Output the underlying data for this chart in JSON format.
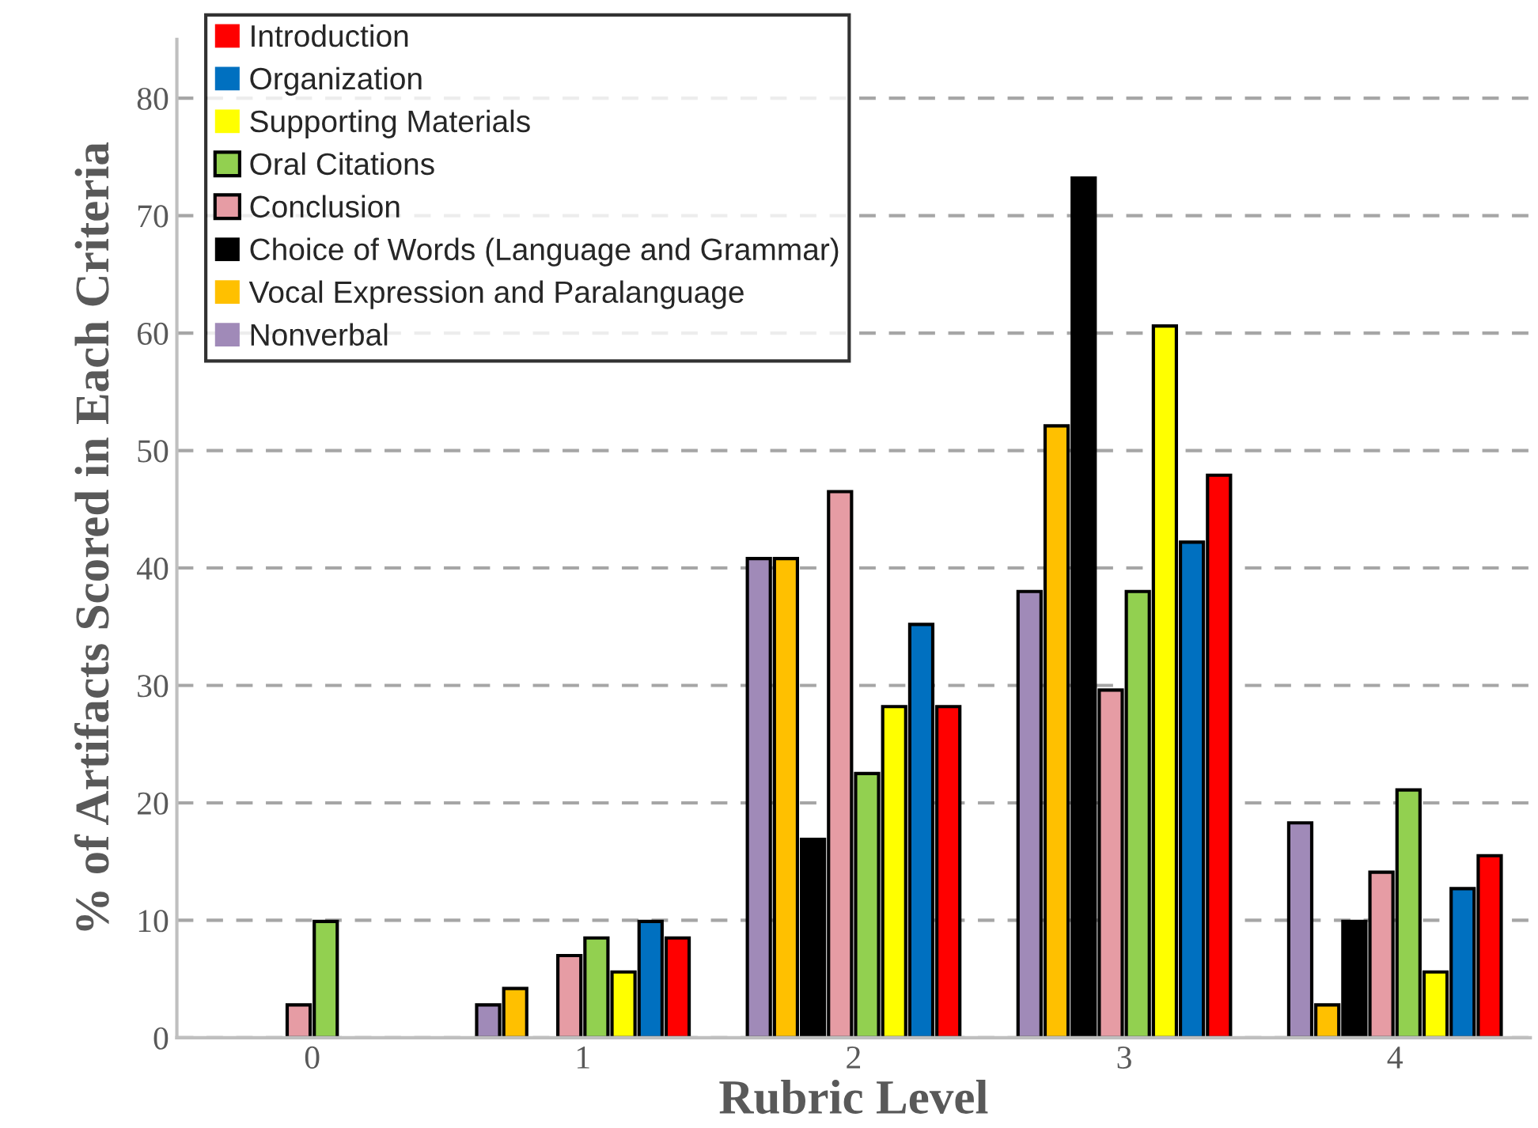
{
  "chart_data": {
    "type": "bar",
    "xlabel": "Rubric Level",
    "ylabel": "% of Artifacts Scored in Each Criteria",
    "categories": [
      "0",
      "1",
      "2",
      "3",
      "4"
    ],
    "series": [
      {
        "name": "Nonverbal",
        "color": "#a08ab8",
        "values": [
          0,
          2.8,
          40.8,
          38.0,
          18.3
        ]
      },
      {
        "name": "Vocal Expression and Paralanguage",
        "color": "#ffc000",
        "values": [
          0,
          4.2,
          40.8,
          52.1,
          2.8
        ]
      },
      {
        "name": "Choice of Words (Language and Grammar)",
        "color": "#000000",
        "values": [
          0,
          0,
          16.9,
          73.2,
          9.9
        ]
      },
      {
        "name": "Conclusion",
        "color": "#e69ca4",
        "values": [
          2.8,
          7.0,
          46.5,
          29.6,
          14.1
        ]
      },
      {
        "name": "Oral Citations",
        "color": "#92d050",
        "values": [
          9.9,
          8.5,
          22.5,
          38.0,
          21.1
        ]
      },
      {
        "name": "Supporting Materials",
        "color": "#ffff00",
        "values": [
          0,
          5.6,
          28.2,
          60.6,
          5.6
        ]
      },
      {
        "name": "Organization",
        "color": "#0070c0",
        "values": [
          0,
          9.9,
          35.2,
          42.2,
          12.7
        ]
      },
      {
        "name": "Introduction",
        "color": "#ff0000",
        "values": [
          0,
          8.5,
          28.2,
          47.9,
          15.5
        ]
      }
    ],
    "ylim": [
      0,
      85
    ],
    "yticks": [
      0,
      10,
      20,
      30,
      40,
      50,
      60,
      70,
      80
    ],
    "grid": "y",
    "legend": "top left"
  }
}
